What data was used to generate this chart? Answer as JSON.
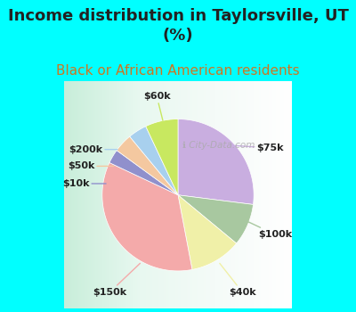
{
  "title": "Income distribution in Taylorsville, UT\n(%)",
  "subtitle": "Black or African American residents",
  "background_color": "#00FFFF",
  "labels": [
    "$75k",
    "$100k",
    "$40k",
    "$150k",
    "$10k",
    "$50k",
    "$200k",
    "$60k"
  ],
  "sizes": [
    27,
    9,
    11,
    35,
    3,
    4,
    4,
    7
  ],
  "colors": [
    "#c9aee0",
    "#a8c8a0",
    "#f0f0a8",
    "#f4aaaa",
    "#9090cc",
    "#f4c8a0",
    "#a8d0ee",
    "#c8e860"
  ],
  "watermark": "City-Data.com",
  "title_fontsize": 13,
  "subtitle_fontsize": 11,
  "subtitle_color": "#cc7722",
  "label_fontsize": 8
}
